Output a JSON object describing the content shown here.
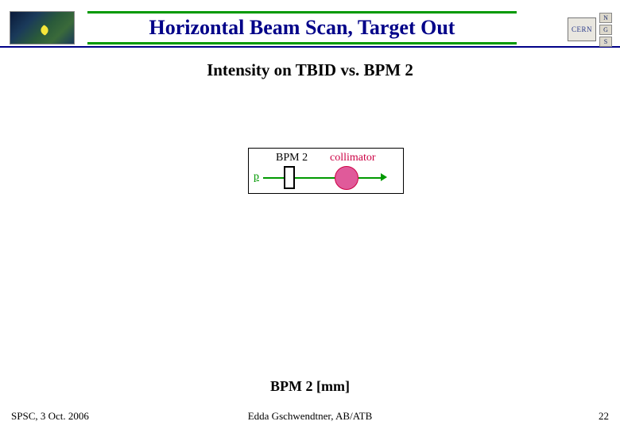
{
  "colors": {
    "title_text": "#000088",
    "header_rule": "#000088",
    "title_border": "#009900",
    "beam_green": "#009900",
    "collimator_red": "#cc0044",
    "collimator_fill": "#e05a9a",
    "black": "#000000"
  },
  "header": {
    "title": "Horizontal Beam Scan, Target Out",
    "cern_text": "CERN"
  },
  "subtitle": "Intensity on TBID vs. BPM 2",
  "diagram": {
    "bpm2_label": "BPM 2",
    "collimator_label": "collimator",
    "particle_label": "p"
  },
  "axis": {
    "x_label": "BPM 2 [mm]"
  },
  "footer": {
    "left": "SPSC, 3 Oct. 2006",
    "center": "Edda Gschwendtner, AB/ATB",
    "page": "22"
  }
}
